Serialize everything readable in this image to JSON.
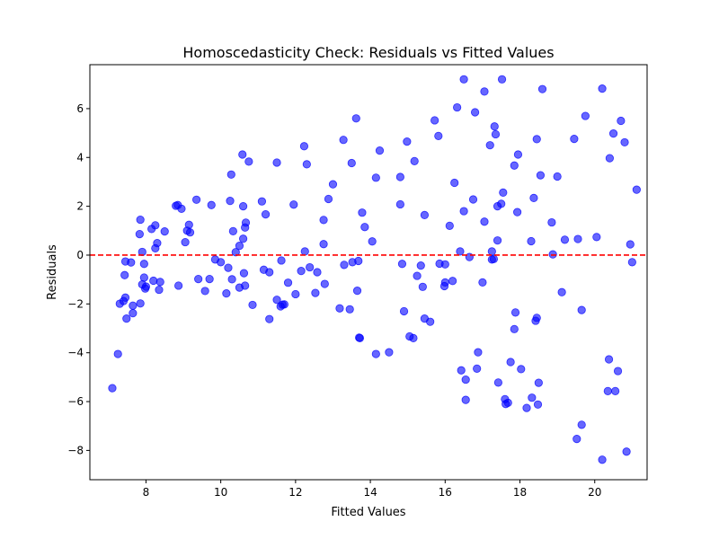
{
  "chart_data": {
    "type": "scatter",
    "title": "Homoscedasticity Check: Residuals vs Fitted Values",
    "xlabel": "Fitted Values",
    "ylabel": "Residuals",
    "xlim": [
      6.5,
      21.4
    ],
    "ylim": [
      -9.2,
      7.8
    ],
    "xticks": [
      8,
      10,
      12,
      14,
      16,
      18,
      20
    ],
    "yticks": [
      -8,
      -6,
      -4,
      -2,
      0,
      2,
      4,
      6
    ],
    "grid": false,
    "legend": "none",
    "point_color": "#0000ff",
    "reference_line": {
      "y": 0,
      "color": "#ff0000",
      "style": "dashed"
    },
    "points": [
      [
        7.1,
        -5.45
      ],
      [
        7.25,
        -4.05
      ],
      [
        7.3,
        -1.99
      ],
      [
        7.4,
        -1.88
      ],
      [
        7.43,
        -0.82
      ],
      [
        7.45,
        -1.74
      ],
      [
        7.45,
        -0.26
      ],
      [
        7.48,
        -2.6
      ],
      [
        7.6,
        -0.3
      ],
      [
        7.65,
        -2.07
      ],
      [
        7.65,
        -2.38
      ],
      [
        7.83,
        0.86
      ],
      [
        7.85,
        1.45
      ],
      [
        7.85,
        -1.98
      ],
      [
        7.9,
        0.13
      ],
      [
        7.9,
        -1.2
      ],
      [
        7.95,
        -0.92
      ],
      [
        7.95,
        -0.36
      ],
      [
        7.98,
        -1.37
      ],
      [
        8.0,
        -1.29
      ],
      [
        8.15,
        1.07
      ],
      [
        8.2,
        -1.05
      ],
      [
        8.25,
        1.22
      ],
      [
        8.25,
        0.28
      ],
      [
        8.3,
        0.49
      ],
      [
        8.35,
        -1.42
      ],
      [
        8.38,
        -1.1
      ],
      [
        8.5,
        0.97
      ],
      [
        8.8,
        2.02
      ],
      [
        8.85,
        2.05
      ],
      [
        8.87,
        -1.25
      ],
      [
        8.95,
        1.9
      ],
      [
        9.05,
        0.53
      ],
      [
        9.1,
        1.0
      ],
      [
        9.15,
        1.24
      ],
      [
        9.18,
        0.93
      ],
      [
        9.35,
        2.27
      ],
      [
        9.4,
        -0.98
      ],
      [
        9.58,
        -1.47
      ],
      [
        9.7,
        -0.98
      ],
      [
        9.75,
        2.05
      ],
      [
        9.85,
        -0.18
      ],
      [
        10.0,
        -0.29
      ],
      [
        10.15,
        -1.57
      ],
      [
        10.2,
        -0.52
      ],
      [
        10.25,
        2.22
      ],
      [
        10.28,
        3.3
      ],
      [
        10.3,
        -0.99
      ],
      [
        10.33,
        0.98
      ],
      [
        10.4,
        0.12
      ],
      [
        10.5,
        -1.33
      ],
      [
        10.5,
        0.38
      ],
      [
        10.58,
        4.12
      ],
      [
        10.6,
        2.0
      ],
      [
        10.6,
        0.67
      ],
      [
        10.62,
        -0.74
      ],
      [
        10.65,
        1.13
      ],
      [
        10.65,
        -1.25
      ],
      [
        10.67,
        1.33
      ],
      [
        10.75,
        3.83
      ],
      [
        10.85,
        -2.04
      ],
      [
        11.1,
        2.2
      ],
      [
        11.15,
        -0.6
      ],
      [
        11.2,
        1.67
      ],
      [
        11.3,
        -0.7
      ],
      [
        11.3,
        -2.62
      ],
      [
        11.5,
        -1.83
      ],
      [
        11.5,
        3.79
      ],
      [
        11.6,
        -2.1
      ],
      [
        11.62,
        -0.22
      ],
      [
        11.65,
        -2.03
      ],
      [
        11.7,
        -2.02
      ],
      [
        11.8,
        -1.13
      ],
      [
        11.95,
        2.07
      ],
      [
        12.0,
        -1.6
      ],
      [
        12.15,
        -0.65
      ],
      [
        12.23,
        4.46
      ],
      [
        12.25,
        0.15
      ],
      [
        12.3,
        3.72
      ],
      [
        12.38,
        -0.5
      ],
      [
        12.53,
        -1.55
      ],
      [
        12.58,
        -0.7
      ],
      [
        12.75,
        1.44
      ],
      [
        12.75,
        0.45
      ],
      [
        12.78,
        -1.18
      ],
      [
        12.88,
        2.3
      ],
      [
        13.0,
        2.9
      ],
      [
        13.18,
        -2.18
      ],
      [
        13.28,
        4.72
      ],
      [
        13.3,
        -0.4
      ],
      [
        13.45,
        -2.22
      ],
      [
        13.5,
        3.77
      ],
      [
        13.52,
        -0.29
      ],
      [
        13.62,
        5.6
      ],
      [
        13.65,
        -1.46
      ],
      [
        13.68,
        -0.24
      ],
      [
        13.7,
        -3.38
      ],
      [
        13.72,
        -3.4
      ],
      [
        13.78,
        1.74
      ],
      [
        13.85,
        1.15
      ],
      [
        14.05,
        0.56
      ],
      [
        14.15,
        3.17
      ],
      [
        14.15,
        -4.05
      ],
      [
        14.25,
        4.28
      ],
      [
        14.5,
        -3.98
      ],
      [
        14.8,
        2.08
      ],
      [
        14.8,
        3.2
      ],
      [
        14.85,
        -0.36
      ],
      [
        14.9,
        -2.3
      ],
      [
        14.98,
        4.65
      ],
      [
        15.05,
        -3.33
      ],
      [
        15.15,
        -3.4
      ],
      [
        15.18,
        3.85
      ],
      [
        15.25,
        -0.85
      ],
      [
        15.35,
        -0.43
      ],
      [
        15.4,
        -1.3
      ],
      [
        15.45,
        1.64
      ],
      [
        15.45,
        -2.6
      ],
      [
        15.6,
        -2.73
      ],
      [
        15.72,
        5.52
      ],
      [
        15.82,
        4.88
      ],
      [
        15.85,
        -0.35
      ],
      [
        15.98,
        -1.27
      ],
      [
        16.0,
        -1.12
      ],
      [
        16.0,
        -0.38
      ],
      [
        16.12,
        1.2
      ],
      [
        16.2,
        -1.06
      ],
      [
        16.25,
        2.96
      ],
      [
        16.32,
        6.05
      ],
      [
        16.4,
        0.15
      ],
      [
        16.43,
        -4.72
      ],
      [
        16.5,
        7.2
      ],
      [
        16.5,
        1.8
      ],
      [
        16.55,
        -5.1
      ],
      [
        16.55,
        -5.93
      ],
      [
        16.65,
        -0.08
      ],
      [
        16.75,
        2.28
      ],
      [
        16.8,
        5.85
      ],
      [
        16.85,
        -4.65
      ],
      [
        16.88,
        -3.98
      ],
      [
        17.0,
        -1.12
      ],
      [
        17.05,
        6.7
      ],
      [
        17.05,
        1.37
      ],
      [
        17.2,
        4.5
      ],
      [
        17.25,
        0.15
      ],
      [
        17.25,
        -0.18
      ],
      [
        17.3,
        -0.16
      ],
      [
        17.32,
        5.27
      ],
      [
        17.35,
        4.95
      ],
      [
        17.4,
        2.0
      ],
      [
        17.4,
        0.6
      ],
      [
        17.42,
        -5.22
      ],
      [
        17.5,
        2.1
      ],
      [
        17.52,
        7.2
      ],
      [
        17.55,
        2.56
      ],
      [
        17.6,
        -5.9
      ],
      [
        17.62,
        -6.1
      ],
      [
        17.68,
        -6.05
      ],
      [
        17.75,
        -4.38
      ],
      [
        17.85,
        3.67
      ],
      [
        17.85,
        -3.03
      ],
      [
        17.88,
        -2.35
      ],
      [
        17.93,
        1.76
      ],
      [
        17.95,
        4.12
      ],
      [
        18.03,
        -4.67
      ],
      [
        18.18,
        -6.26
      ],
      [
        18.3,
        0.57
      ],
      [
        18.32,
        -5.84
      ],
      [
        18.37,
        2.34
      ],
      [
        18.42,
        -2.69
      ],
      [
        18.45,
        4.75
      ],
      [
        18.45,
        -2.57
      ],
      [
        18.48,
        -6.12
      ],
      [
        18.5,
        -5.23
      ],
      [
        18.55,
        3.27
      ],
      [
        18.6,
        6.8
      ],
      [
        18.85,
        1.34
      ],
      [
        18.88,
        0.03
      ],
      [
        19.0,
        3.22
      ],
      [
        19.12,
        -1.52
      ],
      [
        19.2,
        0.63
      ],
      [
        19.45,
        4.76
      ],
      [
        19.52,
        -7.53
      ],
      [
        19.55,
        0.66
      ],
      [
        19.65,
        -6.95
      ],
      [
        19.65,
        -2.25
      ],
      [
        19.75,
        5.7
      ],
      [
        20.05,
        0.74
      ],
      [
        20.2,
        -8.38
      ],
      [
        20.2,
        6.82
      ],
      [
        20.35,
        -5.57
      ],
      [
        20.38,
        -4.27
      ],
      [
        20.4,
        3.97
      ],
      [
        20.5,
        4.98
      ],
      [
        20.55,
        -5.57
      ],
      [
        20.62,
        -4.75
      ],
      [
        20.7,
        5.5
      ],
      [
        20.8,
        4.62
      ],
      [
        20.85,
        -8.05
      ],
      [
        20.95,
        0.44
      ],
      [
        21.0,
        -0.29
      ],
      [
        21.12,
        2.68
      ]
    ]
  }
}
